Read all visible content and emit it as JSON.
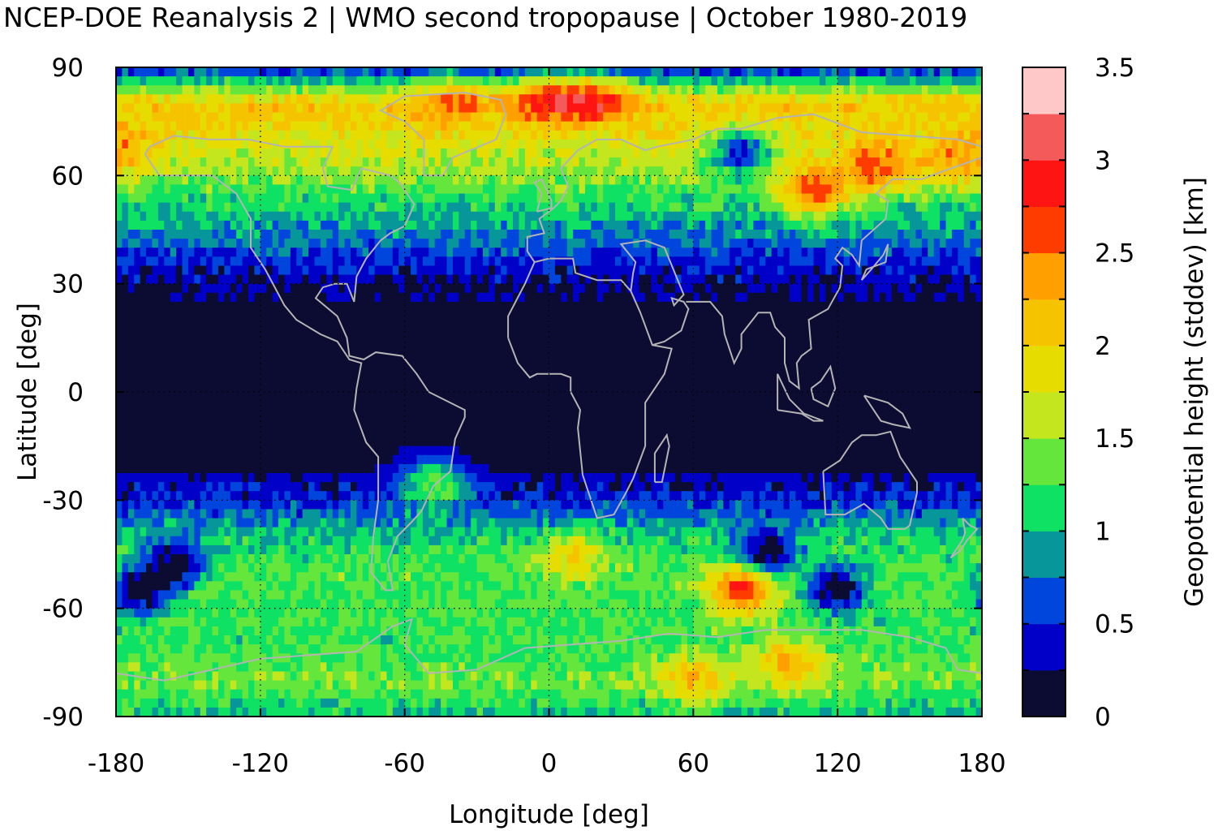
{
  "chart_data": {
    "type": "heatmap",
    "title": "NCEP-DOE Reanalysis 2 | WMO second tropopause | October 1980-2019",
    "xlabel": "Longitude [deg]",
    "ylabel": "Latitude [deg]",
    "xlim": [
      -180,
      180
    ],
    "ylim": [
      -90,
      90
    ],
    "x_ticks": [
      "-180",
      "-120",
      "-60",
      "0",
      "60",
      "120",
      "180"
    ],
    "y_ticks": [
      "90",
      "60",
      "30",
      "0",
      "-30",
      "-60",
      "-90"
    ],
    "grid": true,
    "colorbar": {
      "label": "Geopotential height (stddev) [km]",
      "min": 0,
      "max": 3.5,
      "step": 0.25,
      "ticks": [
        "0",
        "0.5",
        "1",
        "1.5",
        "2",
        "2.5",
        "3",
        "3.5"
      ],
      "colors": [
        "#0c0c33",
        "#0000c8",
        "#0046dc",
        "#07969a",
        "#0ee164",
        "#64e63c",
        "#c3e61e",
        "#e6dc00",
        "#f5c300",
        "#ffa000",
        "#ff3c00",
        "#ff1414",
        "#f55a5a",
        "#ffc8c8"
      ]
    },
    "zonal_profile_stddev_km": {
      "lat": [
        90,
        80,
        70,
        60,
        50,
        40,
        30,
        20,
        10,
        0,
        -10,
        -20,
        -30,
        -40,
        -50,
        -60,
        -70,
        -80,
        -90
      ],
      "value": [
        0.4,
        2.1,
        1.8,
        1.45,
        1.05,
        0.65,
        0.25,
        0.1,
        0.1,
        0.1,
        0.1,
        0.15,
        0.5,
        1.05,
        1.3,
        1.25,
        1.2,
        1.4,
        1.0
      ]
    },
    "hotspots": [
      {
        "lon": 0,
        "lat": 82,
        "value": 2.7
      },
      {
        "lon": 20,
        "lat": 82,
        "value": 2.7
      },
      {
        "lon": -40,
        "lat": 82,
        "value": 2.4
      },
      {
        "lon": -60,
        "lat": 75,
        "value": 2.0
      },
      {
        "lon": 110,
        "lat": 55,
        "value": 2.6
      },
      {
        "lon": 135,
        "lat": 62,
        "value": 2.7
      },
      {
        "lon": 165,
        "lat": 63,
        "value": 2.3
      },
      {
        "lon": -175,
        "lat": 67,
        "value": 2.2
      },
      {
        "lon": 80,
        "lat": -55,
        "value": 2.8
      },
      {
        "lon": 60,
        "lat": -80,
        "value": 2.2
      },
      {
        "lon": 100,
        "lat": -75,
        "value": 2.3
      },
      {
        "lon": 10,
        "lat": -45,
        "value": 1.9
      },
      {
        "lon": -48,
        "lat": -25,
        "value": 1.4
      }
    ],
    "lowspots": [
      {
        "lon": -155,
        "lat": -48
      },
      {
        "lon": -170,
        "lat": -55
      },
      {
        "lon": 120,
        "lat": -55
      },
      {
        "lon": 90,
        "lat": -45
      },
      {
        "lon": 80,
        "lat": 67
      }
    ]
  }
}
